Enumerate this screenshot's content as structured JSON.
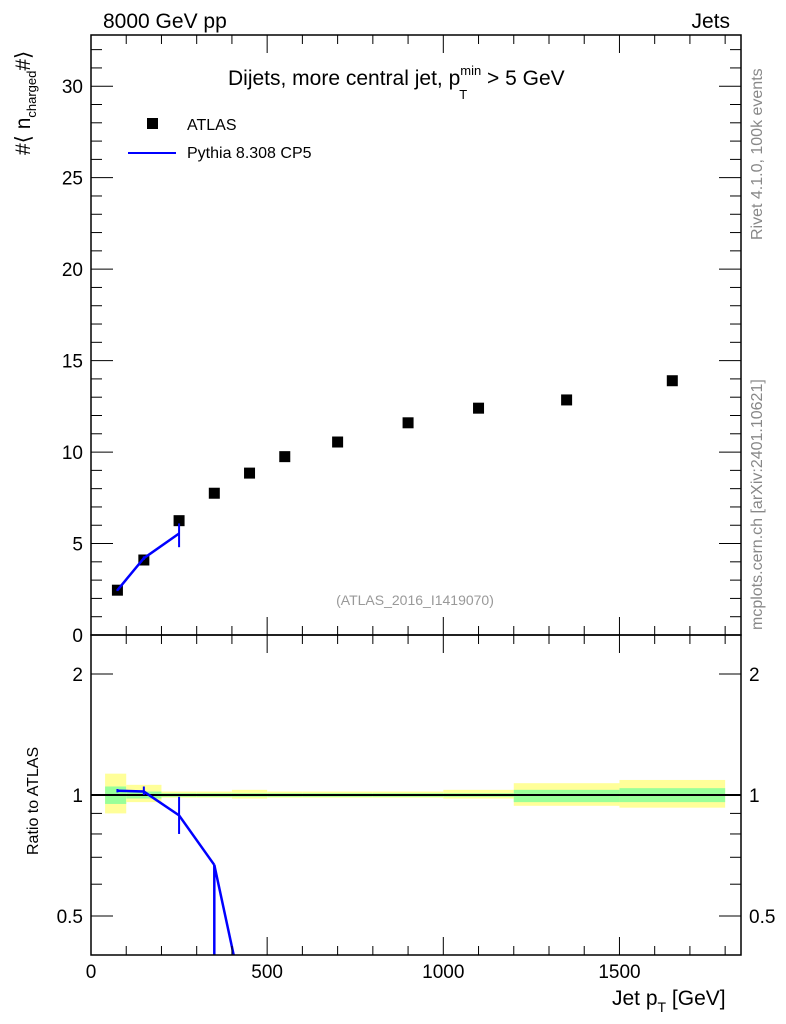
{
  "header": {
    "left": "8000 GeV pp",
    "right": "Jets",
    "side_top": "Rivet 4.1.0,  100k events",
    "side_bottom": "mcplots.cern.ch [arXiv:2401.10621]"
  },
  "chart_data": {
    "type": "scatter",
    "title": "Dijets, more central jet, p",
    "title_sup": "min",
    "title_sub": "T",
    "title_tail": " > 5 GeV",
    "watermark": "(ATLAS_2016_I1419070)",
    "xlabel": "Jet p",
    "xlabel_sub": "T",
    "xlabel_tail": " [GeV]",
    "ylabel": "#⟨ n",
    "ylabel_sub": "charged",
    "ylabel_tail": "#⟩",
    "ratio_ylabel": "Ratio to ATLAS",
    "xlim": [
      0,
      1845
    ],
    "ylim": [
      0,
      32.8
    ],
    "ratio_ylim": [
      0.4,
      2.5
    ],
    "ratio_scale": "log",
    "x_ticks": [
      0,
      500,
      1000,
      1500
    ],
    "x_tick_labels": [
      "0",
      "500",
      "1000",
      "1500"
    ],
    "y_ticks": [
      0,
      5,
      10,
      15,
      20,
      25,
      30
    ],
    "y_tick_labels": [
      "0",
      "5",
      "10",
      "15",
      "20",
      "25",
      "30"
    ],
    "ratio_ticks": [
      0.5,
      1,
      2
    ],
    "ratio_tick_labels": [
      "0.5",
      "1",
      "2"
    ],
    "legend": {
      "position": "top-left",
      "entries": [
        "ATLAS",
        "Pythia 8.308 CP5"
      ]
    },
    "colors": {
      "data": "#000000",
      "mc": "#0000ff",
      "band_inner": "#99ff99",
      "band_outer": "#ffff99"
    },
    "series": [
      {
        "name": "ATLAS",
        "x": [
          75,
          150,
          250,
          350,
          450,
          550,
          700,
          900,
          1100,
          1350,
          1650
        ],
        "y": [
          2.45,
          4.1,
          6.25,
          7.75,
          8.85,
          9.75,
          10.55,
          11.6,
          12.4,
          12.85,
          13.9
        ],
        "bin_edges": [
          40,
          100,
          200,
          300,
          400,
          500,
          600,
          800,
          1000,
          1200,
          1500,
          1800
        ],
        "ratio_band_inner": [
          [
            0.95,
            1.05
          ],
          [
            0.98,
            1.02
          ],
          [
            0.99,
            1.01
          ],
          [
            0.99,
            1.01
          ],
          [
            0.99,
            1.01
          ],
          [
            0.99,
            1.01
          ],
          [
            0.99,
            1.01
          ],
          [
            0.99,
            1.01
          ],
          [
            0.99,
            1.01
          ],
          [
            0.96,
            1.03
          ],
          [
            0.96,
            1.04
          ]
        ],
        "ratio_band_outer": [
          [
            0.9,
            1.13
          ],
          [
            0.96,
            1.06
          ],
          [
            0.985,
            1.02
          ],
          [
            0.985,
            1.02
          ],
          [
            0.98,
            1.03
          ],
          [
            0.985,
            1.02
          ],
          [
            0.985,
            1.02
          ],
          [
            0.985,
            1.02
          ],
          [
            0.98,
            1.03
          ],
          [
            0.94,
            1.07
          ],
          [
            0.93,
            1.09
          ]
        ]
      },
      {
        "name": "Pythia 8.308 CP5",
        "x": [
          75,
          150,
          250
        ],
        "y": [
          2.45,
          4.2,
          5.55
        ],
        "yerr_low": [
          0.05,
          0.1,
          0.75
        ],
        "yerr_high": [
          0.05,
          0.1,
          0.55
        ],
        "ratio_x": [
          75,
          150,
          250,
          350,
          405
        ],
        "ratio": [
          1.025,
          1.02,
          0.89,
          0.67,
          0.4
        ],
        "ratio_err_low": [
          0.01,
          0.02,
          0.09,
          0,
          0
        ],
        "ratio_err_high": [
          0.01,
          0.03,
          0.1,
          0,
          0
        ]
      }
    ]
  }
}
